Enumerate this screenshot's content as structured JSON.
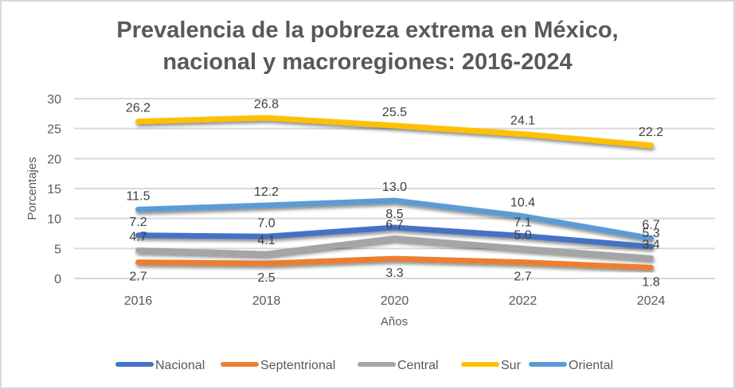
{
  "chart_data": {
    "type": "line",
    "title_lines": [
      "Prevalencia de la pobreza extrema en México,",
      "nacional y macroregiones: 2016-2024"
    ],
    "title": "Prevalencia de la pobreza extrema en México, nacional y macroregiones: 2016-2024",
    "xlabel": "Años",
    "ylabel": "Porcentajes",
    "categories": [
      "2016",
      "2018",
      "2020",
      "2022",
      "2024"
    ],
    "ylim": [
      0,
      30
    ],
    "yticks": [
      0,
      5,
      10,
      15,
      20,
      25,
      30
    ],
    "grid": true,
    "legend_position": "bottom",
    "series": [
      {
        "name": "Nacional",
        "color": "#4472C4",
        "values": [
          7.2,
          7.0,
          8.5,
          7.1,
          5.3
        ],
        "label_position": "above"
      },
      {
        "name": "Septentrional",
        "color": "#ED7D31",
        "values": [
          2.7,
          2.5,
          3.3,
          2.7,
          1.8
        ],
        "label_position": "below"
      },
      {
        "name": "Central",
        "color": "#A5A5A5",
        "values": [
          4.7,
          4.1,
          6.7,
          5.0,
          3.4
        ],
        "label_position": "above"
      },
      {
        "name": "Sur",
        "color": "#FFC000",
        "values": [
          26.2,
          26.8,
          25.5,
          24.1,
          22.2
        ],
        "label_position": "above"
      },
      {
        "name": "Oriental",
        "color": "#5B9BD5",
        "values": [
          11.5,
          12.2,
          13.0,
          10.4,
          6.7
        ],
        "label_position": "above"
      }
    ]
  }
}
